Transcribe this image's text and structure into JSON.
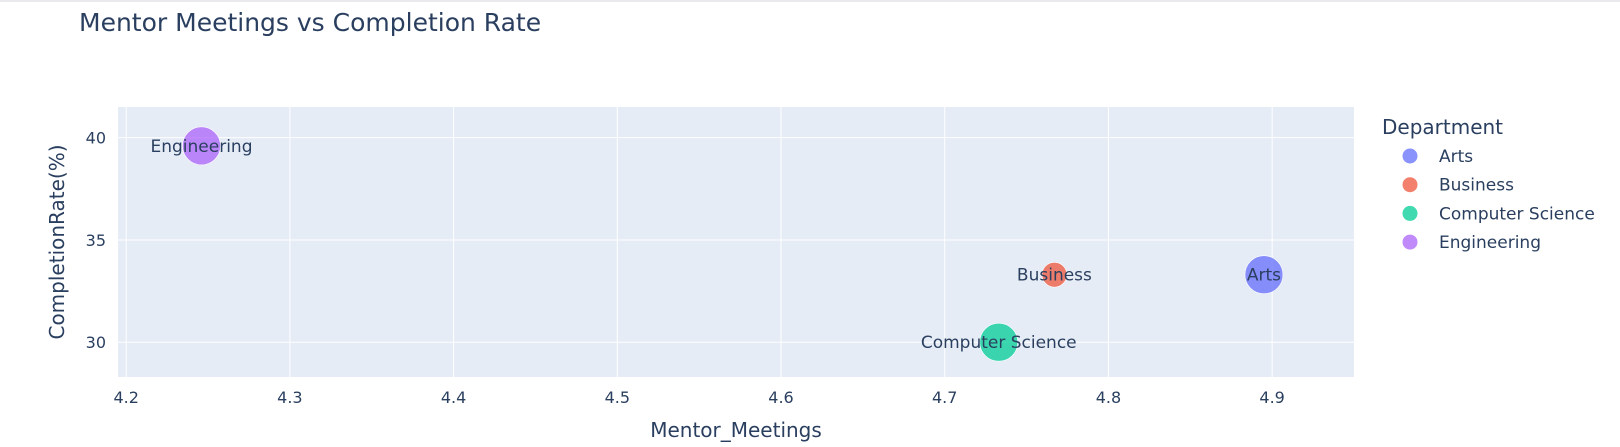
{
  "chart_data": {
    "type": "scatter",
    "title": "Mentor Meetings vs Completion Rate",
    "xlabel": "Mentor_Meetings",
    "ylabel": "CompletionRate(%)",
    "xlim": [
      4.195,
      4.95
    ],
    "ylim": [
      28.3,
      41.5
    ],
    "xticks": [
      4.2,
      4.3,
      4.4,
      4.5,
      4.6,
      4.7,
      4.8,
      4.9
    ],
    "yticks": [
      30,
      35,
      40
    ],
    "grid": true,
    "legend": {
      "title": "Department",
      "placement": "right"
    },
    "series": [
      {
        "name": "Arts",
        "color": "#636efa",
        "x": 4.895,
        "y": 33.3,
        "size": 3.0,
        "label": "Arts"
      },
      {
        "name": "Business",
        "color": "#ef553b",
        "x": 4.767,
        "y": 33.3,
        "size": 1.9,
        "label": "Business"
      },
      {
        "name": "Computer Science",
        "color": "#00cc96",
        "x": 4.733,
        "y": 30.0,
        "size": 3.0,
        "label": "Computer Science"
      },
      {
        "name": "Engineering",
        "color": "#ab63fa",
        "x": 4.246,
        "y": 39.6,
        "size": 3.0,
        "label": "Engineering"
      }
    ]
  }
}
